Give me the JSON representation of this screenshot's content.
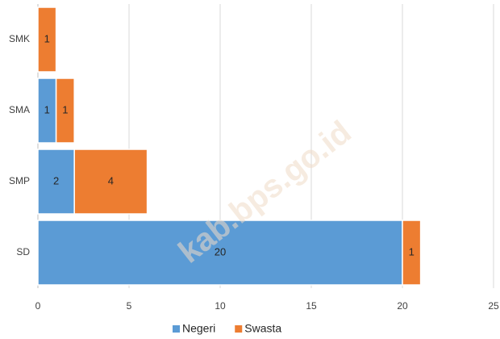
{
  "chart_data": {
    "type": "bar",
    "orientation": "horizontal",
    "stacked": true,
    "categories": [
      "SMK",
      "SMA",
      "SMP",
      "SD"
    ],
    "series": [
      {
        "name": "Negeri",
        "color": "#5b9bd5",
        "values": [
          0,
          1,
          2,
          20
        ]
      },
      {
        "name": "Swasta",
        "color": "#ed7d31",
        "values": [
          1,
          1,
          4,
          1
        ]
      }
    ],
    "xlim": [
      0,
      25
    ],
    "xticks": [
      0,
      5,
      10,
      15,
      20,
      25
    ],
    "grid": true,
    "legend": "bottom",
    "annotation": "kab.bps.go.id"
  }
}
